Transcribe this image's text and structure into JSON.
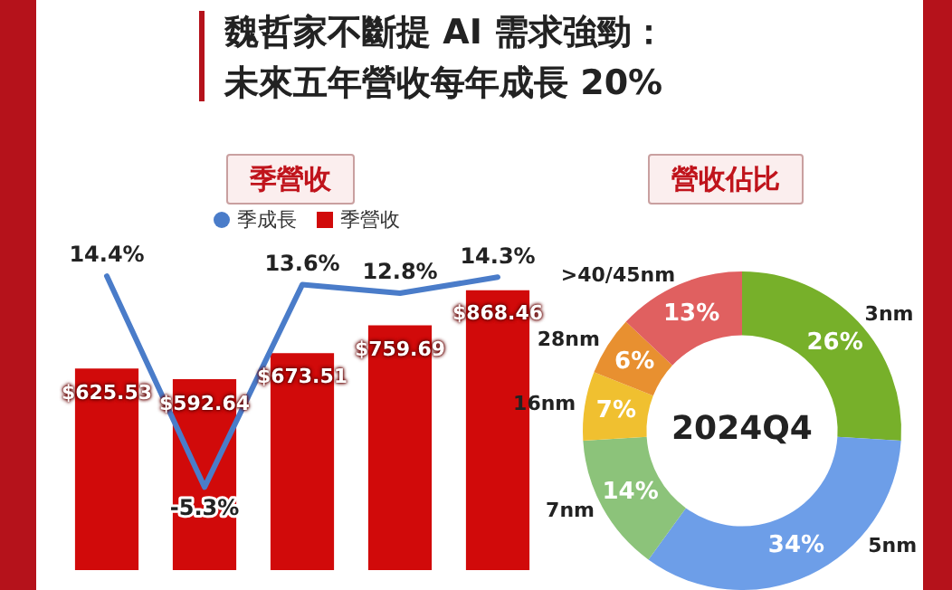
{
  "chart_data": [
    {
      "type": "bar",
      "title": "魏哲家不斷提 AI 需求強勁：未來五年營收每年成長 20%",
      "subtitle": "季營收",
      "categories": [
        null,
        null,
        null,
        null,
        null
      ],
      "legend": "top",
      "data_labels": true,
      "series": [
        {
          "name": "季營收",
          "color": "#d10a0a",
          "values": [
            625.53,
            592.64,
            673.51,
            759.69,
            868.46
          ],
          "value_labels": [
            "$625.53",
            "$592.64",
            "$673.51",
            "$759.69",
            "$868.46"
          ]
        }
      ]
    },
    {
      "type": "line",
      "categories": [
        null,
        null,
        null,
        null,
        null
      ],
      "legend": "top",
      "data_labels": true,
      "marker": "none",
      "series": [
        {
          "name": "季成長",
          "color": "#4a7cc9",
          "values": [
            14.4,
            -5.3,
            13.6,
            12.8,
            14.3
          ],
          "value_labels": [
            "14.4%",
            "-5.3%",
            "13.6%",
            "12.8%",
            "14.3%"
          ]
        }
      ]
    },
    {
      "type": "donut",
      "title": "營收佔比",
      "annotations": [
        "2024Q4"
      ],
      "data_labels": true,
      "categories": [
        "3nm",
        "5nm",
        "7nm",
        "16nm",
        "28nm",
        ">40/45nm"
      ],
      "values": [
        26,
        34,
        14,
        7,
        6,
        13
      ],
      "value_labels": [
        "26%",
        "34%",
        "14%",
        "7%",
        "6%",
        "13%"
      ],
      "colors": [
        "#77b02a",
        "#6d9ee8",
        "#8cc37a",
        "#f0c030",
        "#e89030",
        "#e06060"
      ]
    }
  ]
}
